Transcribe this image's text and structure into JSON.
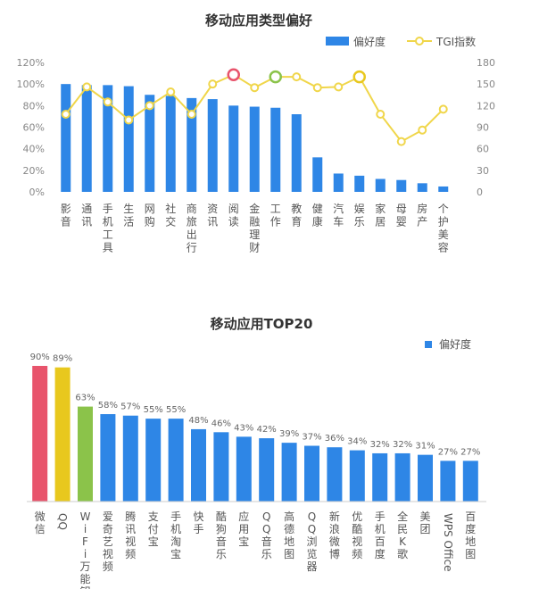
{
  "chart_data": [
    {
      "type": "bar+line",
      "title": "移动应用类型偏好",
      "legend": [
        {
          "name": "偏好度",
          "color": "#2e86e6",
          "symbol": "bar"
        },
        {
          "name": "TGI指数",
          "color": "#f0d64a",
          "symbol": "line-marker"
        }
      ],
      "legend_position": "top-right",
      "categories": [
        "影音",
        "通讯",
        "手机工具",
        "生活",
        "网购",
        "社交",
        "商旅出行",
        "资讯",
        "阅读",
        "金融理财",
        "工作",
        "教育",
        "健康",
        "汽车",
        "娱乐",
        "家居",
        "母婴",
        "房产",
        "个护美容"
      ],
      "y_left": {
        "ticks": [
          "0%",
          "20%",
          "40%",
          "60%",
          "80%",
          "100%",
          "120%"
        ],
        "lim": [
          0,
          120
        ]
      },
      "y_right": {
        "ticks": [
          "0",
          "30",
          "60",
          "90",
          "120",
          "150",
          "180"
        ],
        "lim": [
          0,
          180
        ]
      },
      "series": [
        {
          "name": "偏好度",
          "axis": "left",
          "unit": "%",
          "values": [
            100,
            99,
            99,
            98,
            90,
            89,
            87,
            86,
            80,
            79,
            78,
            72,
            32,
            17,
            15,
            12,
            11,
            8,
            5
          ]
        },
        {
          "name": "TGI指数",
          "axis": "right",
          "values": [
            108,
            146,
            125,
            100,
            120,
            139,
            108,
            150,
            163,
            145,
            160,
            160,
            145,
            146,
            160,
            108,
            70,
            86,
            115
          ],
          "highlight": [
            {
              "index": 8,
              "ring": "#e8546c"
            },
            {
              "index": 10,
              "ring": "#8bc34a"
            },
            {
              "index": 14,
              "ring": "#e8c81e"
            }
          ]
        }
      ],
      "grid": false,
      "colors": {
        "bar": "#2e86e6",
        "line": "#f0d64a",
        "line_marker_fill": "#ffffff"
      }
    },
    {
      "type": "bar",
      "title": "移动应用TOP20",
      "legend": [
        {
          "name": "偏好度",
          "color": "#2e86e6",
          "symbol": "square"
        }
      ],
      "legend_position": "top-right",
      "categories": [
        "微信",
        "QQ",
        "WiFi万能钥匙",
        "爱奇艺视频",
        "腾讯视频",
        "支付宝",
        "手机淘宝",
        "快手",
        "酷狗音乐",
        "应用宝",
        "QQ音乐",
        "高德地图",
        "QQ浏览器",
        "新浪微博",
        "优酷视频",
        "手机百度",
        "全民K歌",
        "美团",
        "WPS Office",
        "百度地图"
      ],
      "values": [
        90,
        89,
        63,
        58,
        57,
        55,
        55,
        48,
        46,
        43,
        42,
        39,
        37,
        36,
        34,
        32,
        32,
        31,
        27,
        27
      ],
      "data_labels": [
        "90%",
        "89%",
        "63%",
        "58%",
        "57%",
        "55%",
        "55%",
        "48%",
        "46%",
        "43%",
        "42%",
        "39%",
        "37%",
        "36%",
        "34%",
        "32%",
        "32%",
        "31%",
        "27%",
        "27%"
      ],
      "bar_colors": [
        "#e8546c",
        "#e8c81e",
        "#8bc34a",
        "#2e86e6",
        "#2e86e6",
        "#2e86e6",
        "#2e86e6",
        "#2e86e6",
        "#2e86e6",
        "#2e86e6",
        "#2e86e6",
        "#2e86e6",
        "#2e86e6",
        "#2e86e6",
        "#2e86e6",
        "#2e86e6",
        "#2e86e6",
        "#2e86e6",
        "#2e86e6",
        "#2e86e6"
      ],
      "ylim": [
        0,
        100
      ],
      "grid": false
    }
  ]
}
